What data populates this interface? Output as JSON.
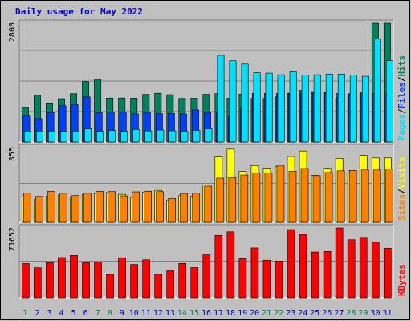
{
  "chart_data": {
    "type": "bar",
    "title": "Daily usage for May 2022",
    "categories": [
      "1",
      "2",
      "3",
      "4",
      "5",
      "6",
      "7",
      "8",
      "9",
      "10",
      "11",
      "12",
      "13",
      "14",
      "15",
      "16",
      "17",
      "18",
      "19",
      "20",
      "21",
      "22",
      "23",
      "24",
      "25",
      "26",
      "27",
      "28",
      "29",
      "30",
      "31"
    ],
    "weekend_days": [
      "1",
      "7",
      "8",
      "14",
      "15",
      "21",
      "22",
      "28",
      "29"
    ],
    "colors": {
      "title": "#0000cc",
      "hits": "#00805c",
      "files": "#0040ff",
      "pages": "#00e0ff",
      "visits": "#ffff00",
      "sites": "#ff8000",
      "kbytes": "#ff0000",
      "weekday_label": "#0000cc",
      "weekend_label": "#00805c",
      "panel_bg": "#c0c0c0"
    },
    "panels": [
      {
        "id": "top",
        "max_label": "2808",
        "ymax": 2808,
        "legend": [
          "Pages",
          "/",
          "Files",
          "/",
          "Hits"
        ],
        "series": [
          {
            "name": "Hits",
            "values": [
              825,
              1105,
              924,
              1024,
              1143,
              1429,
              1482,
              1039,
              1040,
              1035,
              1125,
              1154,
              1119,
              1029,
              1034,
              1128,
              1145,
              1035,
              1133,
              1029,
              1029,
              1065,
              1155,
              1225,
              1174,
              1171,
              1039,
              1124,
              1165,
              2808,
              2808
            ]
          },
          {
            "name": "Files",
            "values": [
              630,
              553,
              698,
              856,
              888,
              1065,
              695,
              703,
              709,
              665,
              701,
              670,
              677,
              662,
              762,
              696,
              713,
              618,
              800,
              1151,
              1151,
              1151,
              1151,
              1151,
              1151,
              1151,
              1151,
              1151,
              1151,
              1151,
              1151
            ]
          },
          {
            "name": "Pages",
            "values": [
              260,
              260,
              262,
              253,
              260,
              310,
              252,
              273,
              250,
              296,
              263,
              285,
              266,
              250,
              275,
              314,
              2050,
              1921,
              1844,
              1638,
              1630,
              1591,
              1660,
              1587,
              1592,
              1606,
              1608,
              1583,
              1555,
              2437,
              1924
            ]
          }
        ]
      },
      {
        "id": "middle",
        "max_label": "355",
        "ymax": 355,
        "legend": [
          "Sites",
          "/",
          "Visits"
        ],
        "series": [
          {
            "name": "Visits",
            "values": [
              120,
              108,
              124,
              129,
              120,
              132,
              136,
              142,
              133,
              116,
              143,
              152,
              106,
              127,
              125,
              177,
              311,
              348,
              242,
              270,
              257,
              266,
              313,
              339,
              223,
              257,
              304,
              234,
              318,
              306,
              306
            ]
          },
          {
            "name": "Sites",
            "values": [
              140,
              123,
              147,
              138,
              127,
              138,
              147,
              146,
              126,
              145,
              148,
              146,
              113,
              137,
              138,
              172,
              210,
              212,
              225,
              235,
              235,
              271,
              243,
              256,
              222,
              237,
              245,
              247,
              249,
              249,
              253
            ]
          }
        ]
      },
      {
        "id": "bottom",
        "max_label": "71652",
        "ymax": 71652,
        "legend": [
          "KBytes"
        ],
        "series": [
          {
            "name": "KBytes",
            "values": [
              35000,
              30700,
              36000,
              41200,
              43400,
              35900,
              36600,
              23900,
              41000,
              34100,
              38900,
              24000,
              27600,
              35200,
              30900,
              44000,
              64000,
              67700,
              40000,
              51100,
              38500,
              37600,
              70000,
              65000,
              46900,
              47500,
              72000,
              59500,
              61900,
              56900,
              50800
            ]
          }
        ]
      }
    ]
  }
}
